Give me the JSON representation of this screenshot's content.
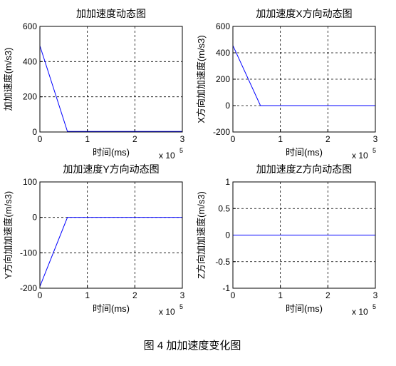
{
  "chart_data": [
    {
      "type": "line",
      "title": "加加速度动态图",
      "xlabel": "时间(ms)",
      "ylabel": "加加速度(m/s3)",
      "x_multiplier": "x 10",
      "x_multiplier_exp": "5",
      "x": [
        0,
        0.58,
        3
      ],
      "values": [
        490,
        3,
        3
      ],
      "color": "#0000ff",
      "xlim": [
        0,
        3
      ],
      "xticks": [
        0,
        1,
        2,
        3
      ],
      "ylim": [
        0,
        600
      ],
      "yticks": [
        0,
        200,
        400,
        600
      ],
      "grid": true
    },
    {
      "type": "line",
      "title": "加加速度X方向动态图",
      "xlabel": "时间(ms)",
      "ylabel": "X方向加加速度(m/s3)",
      "x_multiplier": "x 10",
      "x_multiplier_exp": "5",
      "x": [
        0,
        0.58,
        3
      ],
      "values": [
        455,
        0,
        0
      ],
      "color": "#0000ff",
      "xlim": [
        0,
        3
      ],
      "xticks": [
        0,
        1,
        2,
        3
      ],
      "ylim": [
        -200,
        600
      ],
      "yticks": [
        -200,
        0,
        200,
        400,
        600
      ],
      "grid": true
    },
    {
      "type": "line",
      "title": "加加速度Y方向动态图",
      "xlabel": "时间(ms)",
      "ylabel": "Y方向加加速度(m/s3)",
      "x_multiplier": "x 10",
      "x_multiplier_exp": "5",
      "x": [
        0,
        0.58,
        3
      ],
      "values": [
        -195,
        0,
        0
      ],
      "color": "#0000ff",
      "xlim": [
        0,
        3
      ],
      "xticks": [
        0,
        1,
        2,
        3
      ],
      "ylim": [
        -200,
        100
      ],
      "yticks": [
        -200,
        -100,
        0,
        100
      ],
      "grid": true
    },
    {
      "type": "line",
      "title": "加加速度Z方向动态图",
      "xlabel": "时间(ms)",
      "ylabel": "Z方向加加速度(m/s3)",
      "x_multiplier": "x 10",
      "x_multiplier_exp": "5",
      "x": [
        0,
        3
      ],
      "values": [
        0,
        0
      ],
      "color": "#0000ff",
      "xlim": [
        0,
        3
      ],
      "xticks": [
        0,
        1,
        2,
        3
      ],
      "ylim": [
        -1,
        1
      ],
      "yticks": [
        -1,
        -0.5,
        0,
        0.5,
        1
      ],
      "grid": true
    }
  ],
  "caption": "图 4  加加速度变化图"
}
